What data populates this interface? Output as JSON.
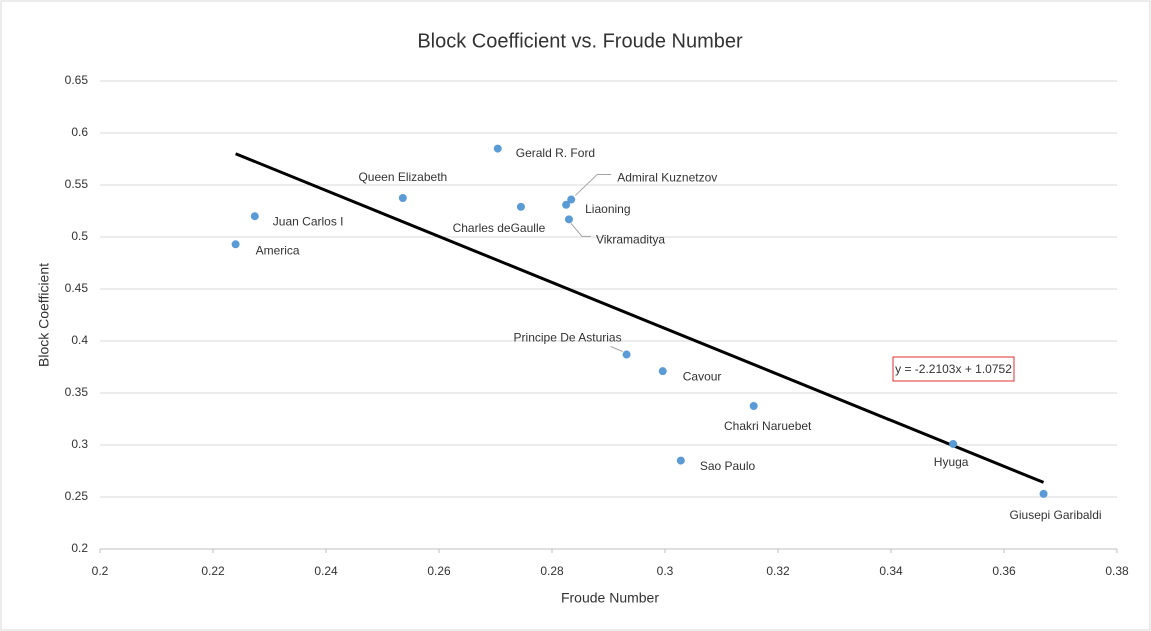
{
  "chart_data": {
    "type": "scatter",
    "title": "Block Coefficient vs. Froude Number",
    "x_label": "Froude Number",
    "y_label": "Block Coefficient",
    "point_labels": [
      "Gerald R. Ford",
      "Queen Elizabeth",
      "Juan Carlos I",
      "America",
      "Charles deGaulle",
      "Liaoning",
      "Admiral Kuznetzov",
      "Vikramaditya",
      "Principe De Asturias",
      "Cavour",
      "Chakri Naruebet",
      "Sao Paulo",
      "Hyuga",
      "Giusepi Garibaldi"
    ],
    "x": [
      0.2704,
      0.2536,
      0.2274,
      0.224,
      0.2745,
      0.2825,
      0.2834,
      0.283,
      0.2932,
      0.2996,
      0.3157,
      0.3028,
      0.351,
      0.367
    ],
    "values": [
      0.585,
      0.5375,
      0.52,
      0.493,
      0.529,
      0.531,
      0.536,
      0.517,
      0.387,
      0.371,
      0.3375,
      0.285,
      0.301,
      0.253
    ],
    "color": "#5b9bd5",
    "trendline": {
      "slope": -2.2103,
      "intercept": 1.0752,
      "label": "y = -2.2103x + 1.0752",
      "color": "#000000"
    },
    "xlim": [
      0.2,
      0.38
    ],
    "xticks": [
      0.2,
      0.22,
      0.24,
      0.26,
      0.28,
      0.3,
      0.32,
      0.34,
      0.36,
      0.38
    ],
    "ylim": [
      0.2,
      0.65
    ],
    "yticks": [
      0.2,
      0.25,
      0.3,
      0.35,
      0.4,
      0.45,
      0.5,
      0.55,
      0.6,
      0.65
    ],
    "grid": true
  }
}
